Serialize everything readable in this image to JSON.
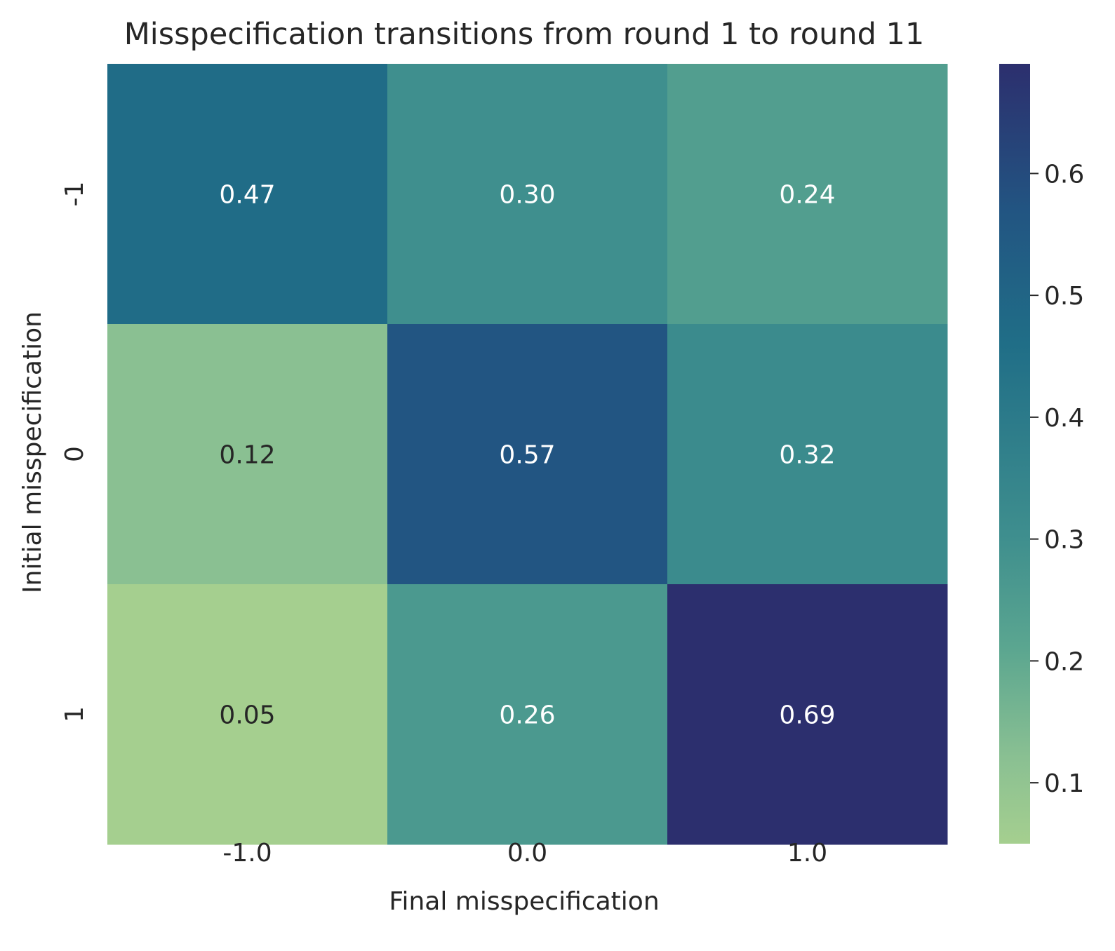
{
  "chart_data": {
    "type": "heatmap",
    "title": "Misspecification transitions from round 1 to round 11",
    "xlabel": "Final misspecification",
    "ylabel": "Initial misspecification",
    "x_categories": [
      "-1.0",
      "0.0",
      "1.0"
    ],
    "y_categories": [
      "-1",
      "0",
      "1"
    ],
    "values": [
      [
        0.47,
        0.3,
        0.24
      ],
      [
        0.12,
        0.57,
        0.32
      ],
      [
        0.05,
        0.26,
        0.69
      ]
    ],
    "cell_labels": [
      [
        "0.47",
        "0.30",
        "0.24"
      ],
      [
        "0.12",
        "0.57",
        "0.32"
      ],
      [
        "0.05",
        "0.26",
        "0.69"
      ]
    ],
    "colormap": "crest",
    "colorbar": {
      "range": [
        0.05,
        0.69
      ],
      "ticks": [
        0.1,
        0.2,
        0.3,
        0.4,
        0.5,
        0.6
      ],
      "tick_labels": [
        "0.1",
        "0.2",
        "0.3",
        "0.4",
        "0.5",
        "0.6"
      ]
    },
    "grid": false
  }
}
